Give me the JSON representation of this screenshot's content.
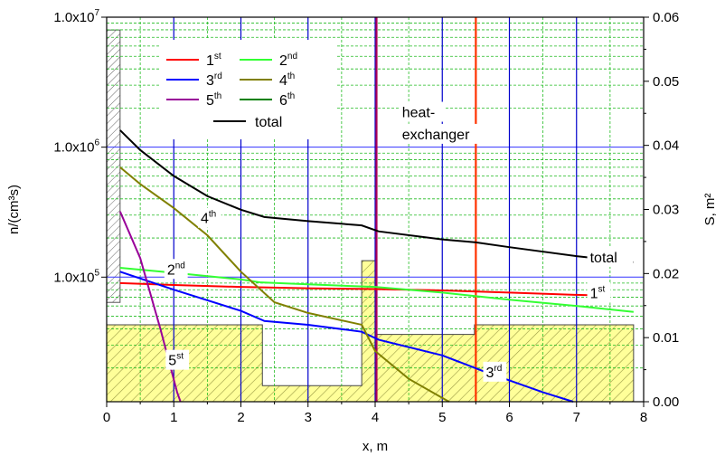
{
  "chart_data": {
    "type": "line",
    "xlabel": "x, m",
    "ylabel": "n/(cm³s)",
    "y2label": "S, m²",
    "xlim": [
      0,
      8
    ],
    "ylim": [
      11000,
      10000000
    ],
    "y_scale": "log",
    "y2lim": [
      0,
      0.06
    ],
    "grid": true,
    "legend_placement": "top-left",
    "x_ticks": [
      "0",
      "1",
      "2",
      "3",
      "4",
      "5",
      "6",
      "7",
      "8"
    ],
    "y_ticks": [
      {
        "value": 10000000,
        "label": "1.0x10",
        "exp": "7"
      },
      {
        "value": 1000000,
        "label": "1.0x10",
        "exp": "6"
      },
      {
        "value": 100000,
        "label": "1.0x10",
        "exp": "5"
      }
    ],
    "y2_ticks": [
      "0.00",
      "0.01",
      "0.02",
      "0.03",
      "0.04",
      "0.05",
      "0.06"
    ],
    "series": [
      {
        "name": "1",
        "sup": "st",
        "color": "#ff0000",
        "x": [
          0.2,
          1.0,
          2.0,
          3.0,
          4.0,
          5.0,
          6.0,
          7.0,
          7.45
        ],
        "y": [
          90000,
          87000,
          84000,
          82000,
          81000,
          79000,
          76000,
          73000,
          72000
        ]
      },
      {
        "name": "2",
        "sup": "nd",
        "color": "#33ff33",
        "x": [
          0.2,
          1.0,
          2.0,
          2.3,
          3.0,
          4.0,
          5.0,
          6.0,
          7.0,
          7.85
        ],
        "y": [
          118000,
          108000,
          96000,
          91000,
          88000,
          84000,
          76000,
          67000,
          60000,
          54000
        ]
      },
      {
        "name": "3",
        "sup": "rd",
        "color": "#0000ff",
        "x": [
          0.2,
          1.0,
          2.0,
          2.35,
          3.0,
          3.8,
          4.05,
          5.0,
          5.6,
          6.5,
          6.95
        ],
        "y": [
          110000,
          80000,
          55000,
          46000,
          43000,
          38000,
          33000,
          25000,
          19000,
          13000,
          11000
        ]
      },
      {
        "name": "4",
        "sup": "th",
        "color": "#808000",
        "x": [
          0.2,
          0.5,
          1.0,
          1.5,
          2.0,
          2.5,
          3.0,
          3.8,
          4.0,
          4.5,
          5.1
        ],
        "y": [
          700000,
          520000,
          340000,
          210000,
          110000,
          64000,
          53000,
          43000,
          27000,
          16500,
          11000
        ]
      },
      {
        "name": "5",
        "sup": "th",
        "color": "#990099",
        "x": [
          0.2,
          0.5,
          0.8,
          1.05,
          1.1
        ],
        "y": [
          320000,
          140000,
          40000,
          13000,
          11000
        ]
      },
      {
        "name": "6",
        "sup": "th",
        "color": "#008000",
        "x": [],
        "y": []
      },
      {
        "name": "total",
        "sup": "",
        "color": "#000000",
        "x": [
          0.2,
          0.5,
          1.0,
          1.5,
          2.0,
          2.35,
          3.0,
          3.8,
          4.05,
          5.0,
          5.5,
          6.0,
          7.0,
          7.85
        ],
        "y": [
          1350000,
          950000,
          600000,
          420000,
          330000,
          290000,
          270000,
          250000,
          225000,
          195000,
          185000,
          170000,
          145000,
          130000
        ]
      }
    ],
    "area_profile": {
      "description_free": true,
      "x": [
        0,
        2.32,
        2.32,
        3.8,
        3.8,
        4.02,
        4.02,
        5.48,
        5.48,
        7.85
      ],
      "s": [
        0.012,
        0.012,
        0.0025,
        0.0025,
        0.022,
        0.022,
        0.0105,
        0.0105,
        0.012,
        0.012
      ]
    },
    "wall": {
      "x0": 0,
      "x1": 0.2,
      "s": 0.058,
      "s_bottom": 0.0155
    },
    "vertical_lines": [
      {
        "x": 4.02,
        "color": "#aa0055"
      },
      {
        "x": 5.5,
        "color": "#ff3300"
      }
    ],
    "annotations": [
      {
        "text": "heat-",
        "x": 4.4,
        "y": 1700000
      },
      {
        "text": "exchanger",
        "x": 4.4,
        "y": 1150000
      },
      {
        "text": "total",
        "x": 7.2,
        "y": 130000
      },
      {
        "text": "1",
        "sup": "st",
        "x": 7.2,
        "y": 69000
      },
      {
        "text": "2",
        "sup": "nd",
        "x": 0.9,
        "y": 105000
      },
      {
        "text": "3",
        "sup": "rd",
        "x": 5.65,
        "y": 17000
      },
      {
        "text": "4",
        "sup": "th",
        "x": 1.4,
        "y": 260000
      },
      {
        "text": "5",
        "sup": "st",
        "x": 0.92,
        "y": 21000
      }
    ]
  }
}
